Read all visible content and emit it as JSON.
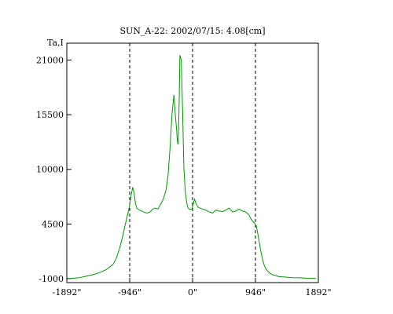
{
  "chart_data": {
    "type": "line",
    "title": "SUN_A-22: 2002/07/15: 4.08[cm]",
    "ylabel": "Ta,I",
    "xlabel": "",
    "xlim": [
      -1892,
      1892
    ],
    "ylim": [
      -1400,
      22700
    ],
    "x_ticks": [
      -1892,
      -946,
      0,
      946,
      1892
    ],
    "x_tick_labels": [
      "-1892\"",
      "-946\"",
      "0\"",
      "946\"",
      "1892\""
    ],
    "y_ticks": [
      -1000,
      4500,
      10000,
      15500,
      21000
    ],
    "y_tick_labels": [
      "-1000",
      "4500",
      "10000",
      "15500",
      "21000"
    ],
    "vlines": [
      -946,
      0,
      946
    ],
    "grid": false,
    "legend": "none",
    "line_color": "#009900",
    "series": [
      {
        "x": [
          -1860,
          -1700,
          -1500,
          -1400,
          -1300,
          -1200,
          -1150,
          -1100,
          -1050,
          -1000,
          -975,
          -950,
          -925,
          -900,
          -880,
          -860,
          -840,
          -800,
          -760,
          -720,
          -680,
          -640,
          -600,
          -560,
          -520,
          -480,
          -440,
          -400,
          -370,
          -340,
          -310,
          -280,
          -260,
          -240,
          -230,
          -220,
          -210,
          -200,
          -190,
          -170,
          -150,
          -130,
          -110,
          -90,
          -70,
          -50,
          -30,
          -10,
          10,
          30,
          50,
          80,
          110,
          150,
          200,
          250,
          300,
          350,
          400,
          450,
          500,
          550,
          600,
          650,
          700,
          750,
          800,
          850,
          870,
          900,
          930,
          960,
          990,
          1020,
          1050,
          1080,
          1110,
          1150,
          1200,
          1300,
          1400,
          1500,
          1600,
          1700,
          1800,
          1860
        ],
        "y": [
          -1000,
          -900,
          -600,
          -400,
          -100,
          400,
          1000,
          2000,
          3300,
          4800,
          5500,
          6300,
          7400,
          8200,
          7600,
          6600,
          6100,
          5900,
          5800,
          5650,
          5600,
          5700,
          6000,
          6100,
          6000,
          6500,
          7000,
          7900,
          9300,
          12000,
          15500,
          17500,
          15500,
          14000,
          13000,
          12500,
          14000,
          17500,
          21500,
          21000,
          16000,
          10000,
          7800,
          6700,
          6100,
          6000,
          5950,
          6000,
          6500,
          7000,
          6600,
          6200,
          6100,
          6000,
          5900,
          5700,
          5600,
          5900,
          5800,
          5750,
          5900,
          6100,
          5700,
          5800,
          6000,
          5800,
          5700,
          5400,
          5100,
          4800,
          4600,
          4300,
          3200,
          2000,
          1000,
          300,
          -100,
          -400,
          -600,
          -800,
          -850,
          -900,
          -920,
          -950,
          -970,
          -980
        ]
      }
    ]
  }
}
